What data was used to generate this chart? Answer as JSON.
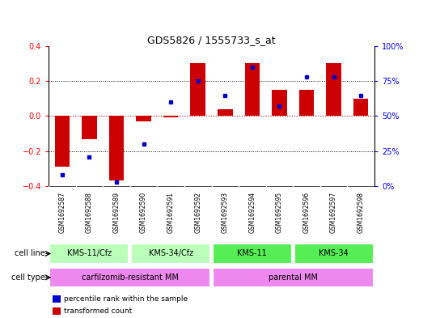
{
  "title": "GDS5826 / 1555733_s_at",
  "samples": [
    "GSM1692587",
    "GSM1692588",
    "GSM1692589",
    "GSM1692590",
    "GSM1692591",
    "GSM1692592",
    "GSM1692593",
    "GSM1692594",
    "GSM1692595",
    "GSM1692596",
    "GSM1692597",
    "GSM1692598"
  ],
  "transformed_count": [
    -0.29,
    -0.13,
    -0.37,
    -0.03,
    -0.005,
    0.305,
    0.04,
    0.305,
    0.15,
    0.15,
    0.305,
    0.1
  ],
  "percentile_rank": [
    8,
    21,
    3,
    30,
    60,
    75,
    65,
    85,
    57,
    78,
    78,
    65
  ],
  "bar_color": "#cc0000",
  "dot_color": "#0000cc",
  "ylim_left": [
    -0.4,
    0.4
  ],
  "ylim_right": [
    0,
    100
  ],
  "yticks_left": [
    -0.4,
    -0.2,
    0.0,
    0.2,
    0.4
  ],
  "yticks_right": [
    0,
    25,
    50,
    75,
    100
  ],
  "ytick_labels_right": [
    "0%",
    "25%",
    "50%",
    "75%",
    "100%"
  ],
  "cell_line_groups": [
    {
      "label": "KMS-11/Cfz",
      "start": 0,
      "end": 3,
      "color": "#bbffbb"
    },
    {
      "label": "KMS-34/Cfz",
      "start": 3,
      "end": 6,
      "color": "#bbffbb"
    },
    {
      "label": "KMS-11",
      "start": 6,
      "end": 9,
      "color": "#55ee55"
    },
    {
      "label": "KMS-34",
      "start": 9,
      "end": 12,
      "color": "#55ee55"
    }
  ],
  "cell_type_groups": [
    {
      "label": "carfilzomib-resistant MM",
      "start": 0,
      "end": 6,
      "color": "#ee88ee"
    },
    {
      "label": "parental MM",
      "start": 6,
      "end": 12,
      "color": "#ee88ee"
    }
  ],
  "cell_line_label": "cell line",
  "cell_type_label": "cell type",
  "legend_items": [
    {
      "color": "#cc0000",
      "label": "transformed count"
    },
    {
      "color": "#0000cc",
      "label": "percentile rank within the sample"
    }
  ],
  "bg_color": "#ffffff",
  "plot_bg_color": "#ffffff",
  "zero_line_color": "#cc0000",
  "sample_bg_color": "#cccccc",
  "divider_color": "#ffffff"
}
